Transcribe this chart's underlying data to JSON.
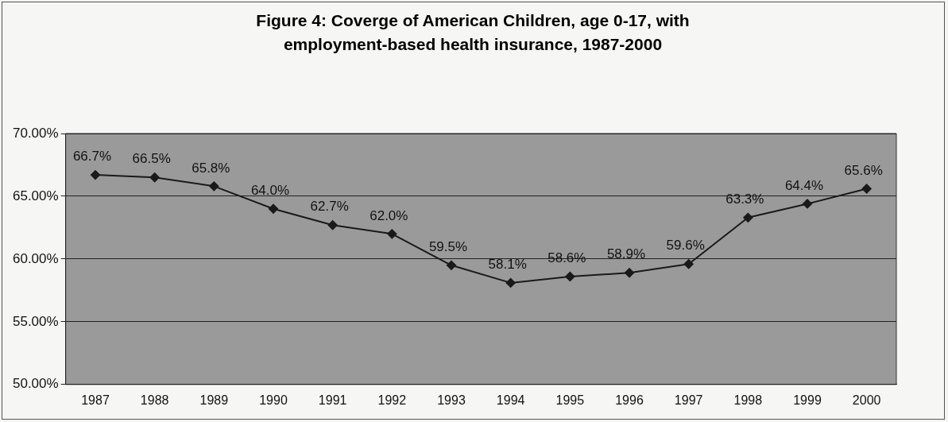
{
  "chart_data": {
    "type": "line",
    "title": "Figure 4: Coverge of American Children, age 0-17, with employment-based health insurance, 1987-2000",
    "categories": [
      "1987",
      "1988",
      "1989",
      "1990",
      "1991",
      "1992",
      "1993",
      "1994",
      "1995",
      "1996",
      "1997",
      "1998",
      "1999",
      "2000"
    ],
    "series": [
      {
        "color": "#1a1a1a",
        "values": [
          66.7,
          66.5,
          65.8,
          64.0,
          62.7,
          62.0,
          59.5,
          58.1,
          58.6,
          58.9,
          59.6,
          63.3,
          64.4,
          65.6
        ],
        "value_labels": [
          "66.7%",
          "66.5%",
          "65.8%",
          "64.0%",
          "62.7%",
          "62.0%",
          "59.5%",
          "58.1%",
          "58.6%",
          "58.9%",
          "59.6%",
          "63.3%",
          "64.4%",
          "65.6%"
        ]
      }
    ],
    "ylim": [
      50,
      70
    ],
    "yticks": [
      {
        "value": 50,
        "label": "50.00%"
      },
      {
        "value": 55,
        "label": "55.00%"
      },
      {
        "value": 60,
        "label": "60.00%"
      },
      {
        "value": 65,
        "label": "65.00%"
      },
      {
        "value": 70,
        "label": "70.00%"
      }
    ],
    "grid": "y",
    "legend": false,
    "marker": "diamond",
    "line_style": "solid"
  }
}
